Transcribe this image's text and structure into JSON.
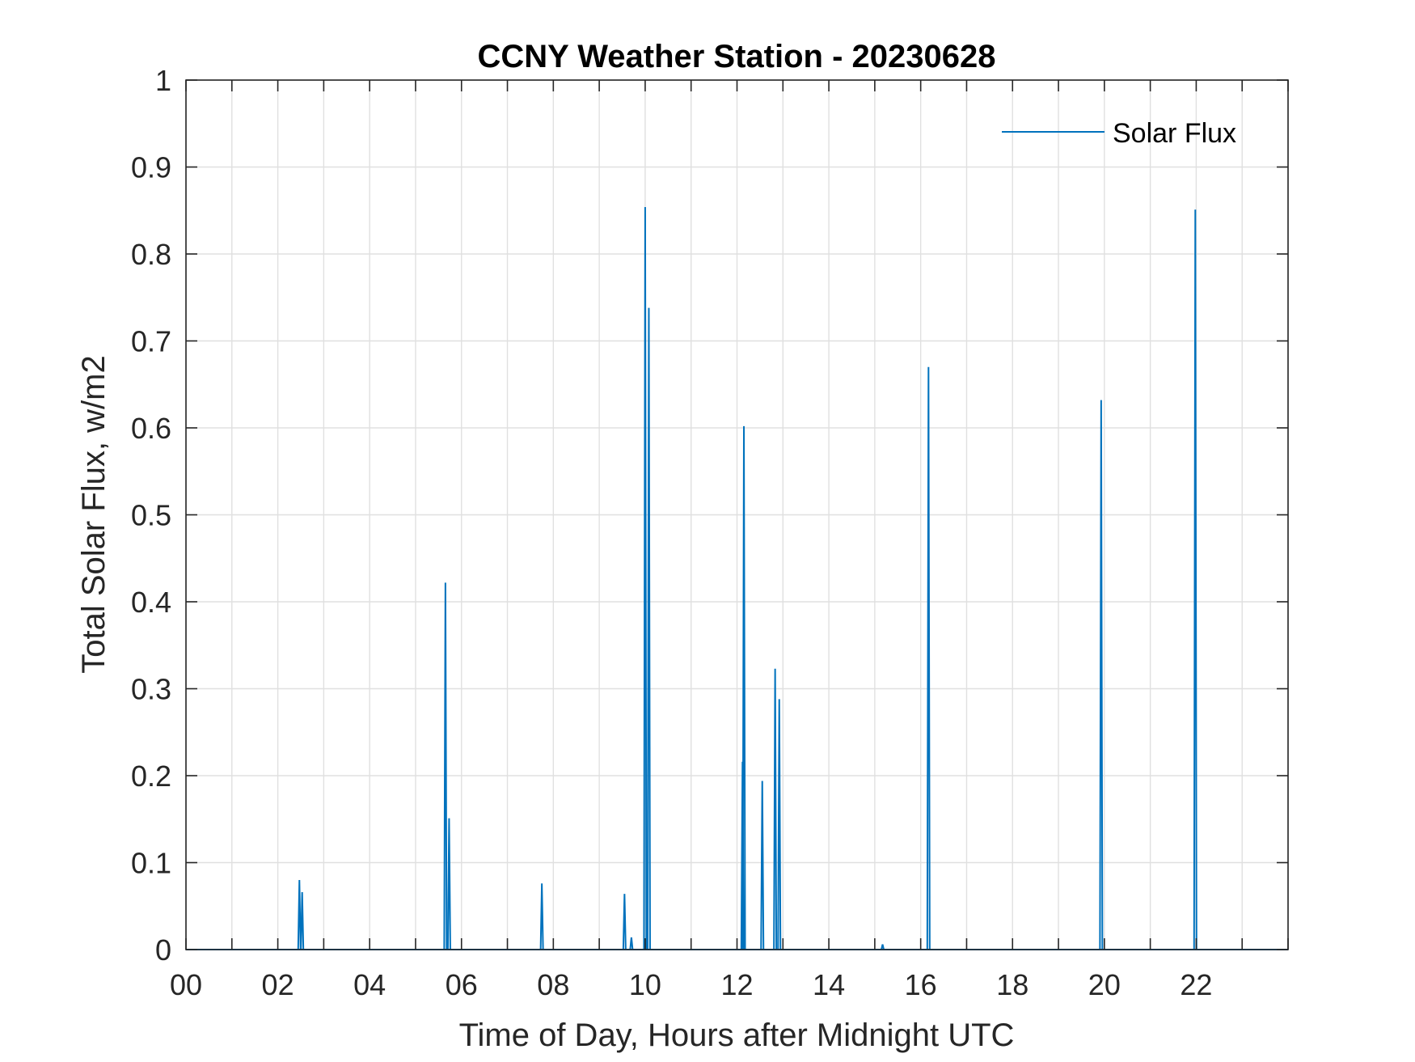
{
  "chart_data": {
    "type": "line",
    "title": "CCNY Weather Station - 20230628",
    "xlabel": "Time of Day, Hours after Midnight UTC",
    "ylabel": "Total Solar Flux, w/m2",
    "xlim": [
      0,
      24
    ],
    "ylim": [
      0,
      1
    ],
    "x_ticks": [
      0,
      2,
      4,
      6,
      8,
      10,
      12,
      14,
      16,
      18,
      20,
      22
    ],
    "x_tick_labels": [
      "00",
      "02",
      "04",
      "06",
      "08",
      "10",
      "12",
      "14",
      "16",
      "18",
      "20",
      "22"
    ],
    "y_ticks": [
      0,
      0.1,
      0.2,
      0.3,
      0.4,
      0.5,
      0.6,
      0.7,
      0.8,
      0.9,
      1
    ],
    "y_tick_labels": [
      "0",
      "0.1",
      "0.2",
      "0.3",
      "0.4",
      "0.5",
      "0.6",
      "0.7",
      "0.8",
      "0.9",
      "1"
    ],
    "grid": true,
    "legend_position": "top-right",
    "series": [
      {
        "name": "Solar Flux",
        "color": "#0072BD",
        "spikes": [
          {
            "x": 2.47,
            "y": 0.08
          },
          {
            "x": 2.53,
            "y": 0.066
          },
          {
            "x": 5.65,
            "y": 0.422
          },
          {
            "x": 5.73,
            "y": 0.151
          },
          {
            "x": 7.75,
            "y": 0.076
          },
          {
            "x": 9.55,
            "y": 0.064
          },
          {
            "x": 9.7,
            "y": 0.014
          },
          {
            "x": 10.0,
            "y": 0.854
          },
          {
            "x": 10.08,
            "y": 0.738
          },
          {
            "x": 12.12,
            "y": 0.216
          },
          {
            "x": 12.15,
            "y": 0.602
          },
          {
            "x": 12.55,
            "y": 0.194
          },
          {
            "x": 12.83,
            "y": 0.323
          },
          {
            "x": 12.92,
            "y": 0.288
          },
          {
            "x": 15.17,
            "y": 0.006
          },
          {
            "x": 16.17,
            "y": 0.67
          },
          {
            "x": 19.93,
            "y": 0.632
          },
          {
            "x": 21.98,
            "y": 0.851
          }
        ]
      }
    ]
  }
}
